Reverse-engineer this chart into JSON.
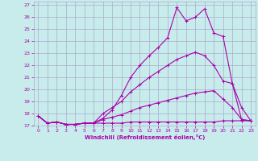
{
  "xlabel": "Windchill (Refroidissement éolien,°C)",
  "background_color": "#c8ecec",
  "grid_color": "#aaaacc",
  "line_color": "#aa00aa",
  "xlim": [
    -0.5,
    23.5
  ],
  "ylim": [
    17,
    27.3
  ],
  "yticks": [
    17,
    18,
    19,
    20,
    21,
    22,
    23,
    24,
    25,
    26,
    27
  ],
  "xticks": [
    0,
    1,
    2,
    3,
    4,
    5,
    6,
    7,
    8,
    9,
    10,
    11,
    12,
    13,
    14,
    15,
    16,
    17,
    18,
    19,
    20,
    21,
    22,
    23
  ],
  "series": [
    [
      17.8,
      17.2,
      17.3,
      17.1,
      17.1,
      17.2,
      17.2,
      17.2,
      17.2,
      17.2,
      17.3,
      17.3,
      17.3,
      17.3,
      17.3,
      17.3,
      17.3,
      17.3,
      17.3,
      17.3,
      17.4,
      17.4,
      17.4,
      17.4
    ],
    [
      17.8,
      17.2,
      17.3,
      17.1,
      17.1,
      17.2,
      17.2,
      17.5,
      17.7,
      17.9,
      18.2,
      18.5,
      18.7,
      18.9,
      19.1,
      19.3,
      19.5,
      19.7,
      19.8,
      19.9,
      19.2,
      18.5,
      17.5,
      17.4
    ],
    [
      17.8,
      17.2,
      17.3,
      17.1,
      17.1,
      17.2,
      17.2,
      18.0,
      18.5,
      19.0,
      19.8,
      20.4,
      21.0,
      21.5,
      22.0,
      22.5,
      22.8,
      23.1,
      22.8,
      22.0,
      20.7,
      20.5,
      18.5,
      17.4
    ],
    [
      17.8,
      17.2,
      17.3,
      17.1,
      17.1,
      17.2,
      17.2,
      17.6,
      18.3,
      19.5,
      21.0,
      22.0,
      22.8,
      23.5,
      24.3,
      26.8,
      25.7,
      26.0,
      26.7,
      24.7,
      24.4,
      20.5,
      17.5,
      17.4
    ]
  ]
}
